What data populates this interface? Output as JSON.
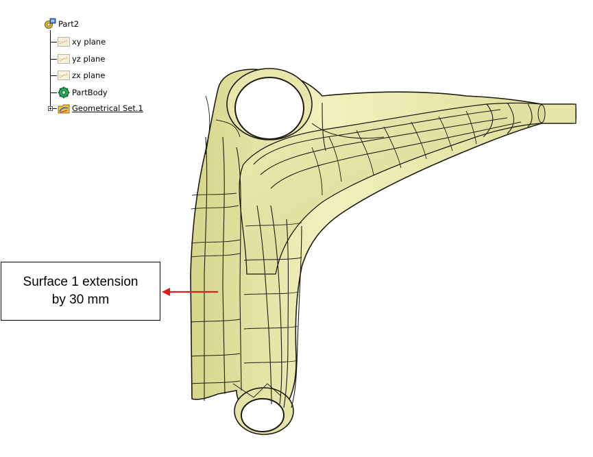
{
  "spec_tree": {
    "root": {
      "label": "Part2",
      "icon": "part-icon"
    },
    "children": [
      {
        "label": "xy plane",
        "icon": "plane-icon"
      },
      {
        "label": "yz plane",
        "icon": "plane-icon"
      },
      {
        "label": "zx plane",
        "icon": "plane-icon"
      },
      {
        "label": "PartBody",
        "icon": "partbody-icon"
      },
      {
        "label": "Geometrical Set.1",
        "icon": "geometrical-set-icon",
        "collapsed": true
      }
    ]
  },
  "annotation": {
    "text": "Surface 1 extension\nby 30 mm",
    "arrow_color": "#e31b1b"
  },
  "model": {
    "surface_color": "#eaeaa7",
    "edge_color": "#1a1a10"
  }
}
